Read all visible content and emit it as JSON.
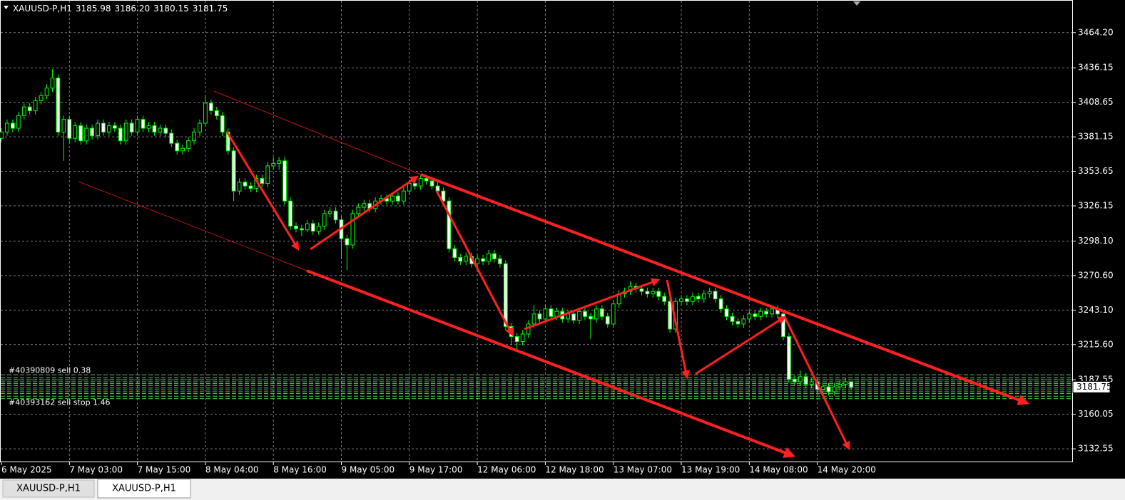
{
  "chart_data": {
    "type": "candlestick",
    "symbol": "XAUUSD-P,H1",
    "last_bar_labels": [
      "3185.98",
      "3186.20",
      "3180.15",
      "3181.75"
    ],
    "ylim": [
      3122.4,
      3490.2
    ],
    "yticks": [
      {
        "value": 3464.2,
        "label": "3464.20"
      },
      3436.15,
      3408.65,
      3381.15,
      3353.65,
      3326.15,
      {
        "value": 3298.1,
        "label": "3298.10"
      },
      {
        "value": 3270.6,
        "label": "3270.60"
      },
      {
        "value": 3243.1,
        "label": "3243.10"
      },
      {
        "value": 3215.6,
        "label": "3215.60"
      },
      3187.55,
      3160.05,
      3132.55
    ],
    "xlim": [
      0,
      189
    ],
    "xticks": [
      {
        "value": 0,
        "label": "6 May 2025"
      },
      {
        "value": 12,
        "label": "7 May 03:00"
      },
      {
        "value": 24,
        "label": "7 May 15:00"
      },
      {
        "value": 36,
        "label": "8 May 04:00"
      },
      {
        "value": 48,
        "label": "8 May 16:00"
      },
      {
        "value": 60,
        "label": "9 May 05:00"
      },
      {
        "value": 72,
        "label": "9 May 17:00"
      },
      {
        "value": 84,
        "label": "12 May 06:00"
      },
      {
        "value": 96,
        "label": "12 May 18:00"
      },
      {
        "value": 108,
        "label": "13 May 07:00"
      },
      {
        "value": 120,
        "label": "13 May 19:00"
      },
      {
        "value": 132,
        "label": "14 May 08:00"
      },
      {
        "value": 144,
        "label": "14 May 20:00"
      }
    ],
    "grid": true,
    "color": "#00ff00",
    "order_levels": [
      3191.5,
      3189,
      3187.5,
      3186,
      3184.5,
      3183,
      3181,
      3179.5,
      3178,
      3176.5,
      3174.5,
      3172.5
    ],
    "order_color": "#44dd44",
    "order_labels": [
      "#40390809 sell 0.38",
      "#40393162 sell stop 1.46"
    ],
    "ohlc": [
      [
        3380,
        3388,
        3377,
        3385
      ],
      [
        3385,
        3395,
        3382,
        3392
      ],
      [
        3392,
        3395,
        3385,
        3388
      ],
      [
        3388,
        3401,
        3385,
        3398
      ],
      [
        3398,
        3408,
        3395,
        3405
      ],
      [
        3405,
        3408,
        3399,
        3402
      ],
      [
        3402,
        3413,
        3399,
        3410
      ],
      [
        3410,
        3417,
        3407,
        3414
      ],
      [
        3414,
        3423,
        3411,
        3420
      ],
      [
        3420,
        3435,
        3417,
        3428
      ],
      [
        3428,
        3431,
        3382,
        3385
      ],
      [
        3385,
        3398,
        3362,
        3395
      ],
      [
        3395,
        3398,
        3377,
        3380
      ],
      [
        3380,
        3393,
        3377,
        3390
      ],
      [
        3390,
        3393,
        3375,
        3378
      ],
      [
        3378,
        3391,
        3375,
        3388
      ],
      [
        3388,
        3391,
        3379,
        3382
      ],
      [
        3382,
        3395,
        3379,
        3392
      ],
      [
        3392,
        3395,
        3382,
        3385
      ],
      [
        3385,
        3393,
        3382,
        3390
      ],
      [
        3390,
        3393,
        3385,
        3388
      ],
      [
        3388,
        3391,
        3375,
        3378
      ],
      [
        3378,
        3395,
        3375,
        3392
      ],
      [
        3392,
        3395,
        3382,
        3385
      ],
      [
        3385,
        3398,
        3382,
        3395
      ],
      [
        3395,
        3398,
        3385,
        3388
      ],
      [
        3388,
        3393,
        3385,
        3390
      ],
      [
        3390,
        3393,
        3382,
        3385
      ],
      [
        3385,
        3391,
        3382,
        3388
      ],
      [
        3388,
        3391,
        3381,
        3384
      ],
      [
        3384,
        3387,
        3373,
        3376
      ],
      [
        3376,
        3379,
        3367,
        3370
      ],
      [
        3370,
        3375,
        3367,
        3372
      ],
      [
        3372,
        3381,
        3369,
        3378
      ],
      [
        3378,
        3388,
        3375,
        3385
      ],
      [
        3385,
        3395,
        3382,
        3392
      ],
      [
        3392,
        3414,
        3389,
        3408
      ],
      [
        3408,
        3411,
        3399,
        3402
      ],
      [
        3402,
        3405,
        3395,
        3398
      ],
      [
        3398,
        3401,
        3382,
        3385
      ],
      [
        3385,
        3388,
        3367,
        3370
      ],
      [
        3370,
        3373,
        3330,
        3338
      ],
      [
        3338,
        3348,
        3335,
        3345
      ],
      [
        3345,
        3348,
        3339,
        3342
      ],
      [
        3342,
        3345,
        3337,
        3340
      ],
      [
        3340,
        3351,
        3337,
        3348
      ],
      [
        3348,
        3351,
        3341,
        3344
      ],
      [
        3344,
        3361,
        3341,
        3358
      ],
      [
        3358,
        3365,
        3355,
        3360
      ],
      [
        3360,
        3365,
        3355,
        3362
      ],
      [
        3362,
        3365,
        3327,
        3330
      ],
      [
        3330,
        3333,
        3307,
        3310
      ],
      [
        3310,
        3313,
        3305,
        3308
      ],
      [
        3308,
        3311,
        3302,
        3307
      ],
      [
        3307,
        3315,
        3305,
        3312
      ],
      [
        3312,
        3315,
        3303,
        3306
      ],
      [
        3306,
        3313,
        3303,
        3310
      ],
      [
        3310,
        3323,
        3307,
        3320
      ],
      [
        3320,
        3325,
        3317,
        3322
      ],
      [
        3322,
        3325,
        3312,
        3315
      ],
      [
        3315,
        3318,
        3285,
        3300
      ],
      [
        3300,
        3303,
        3275,
        3295
      ],
      [
        3295,
        3323,
        3292,
        3320
      ],
      [
        3320,
        3328,
        3317,
        3325
      ],
      [
        3325,
        3331,
        3322,
        3328
      ],
      [
        3328,
        3331,
        3321,
        3324
      ],
      [
        3324,
        3333,
        3321,
        3330
      ],
      [
        3330,
        3335,
        3327,
        3332
      ],
      [
        3332,
        3335,
        3327,
        3330
      ],
      [
        3330,
        3337,
        3327,
        3334
      ],
      [
        3334,
        3337,
        3327,
        3330
      ],
      [
        3330,
        3341,
        3327,
        3338
      ],
      [
        3338,
        3347,
        3335,
        3344
      ],
      [
        3344,
        3347,
        3339,
        3342
      ],
      [
        3342,
        3351,
        3339,
        3348
      ],
      [
        3348,
        3351,
        3343,
        3346
      ],
      [
        3346,
        3349,
        3339,
        3342
      ],
      [
        3342,
        3345,
        3335,
        3338
      ],
      [
        3338,
        3341,
        3327,
        3330
      ],
      [
        3330,
        3333,
        3289,
        3292
      ],
      [
        3292,
        3295,
        3282,
        3285
      ],
      [
        3285,
        3288,
        3279,
        3282
      ],
      [
        3282,
        3289,
        3279,
        3286
      ],
      [
        3286,
        3289,
        3277,
        3280
      ],
      [
        3280,
        3287,
        3277,
        3284
      ],
      [
        3284,
        3287,
        3279,
        3282
      ],
      [
        3282,
        3291,
        3279,
        3288
      ],
      [
        3288,
        3291,
        3281,
        3284
      ],
      [
        3284,
        3287,
        3277,
        3280
      ],
      [
        3280,
        3283,
        3227,
        3230
      ],
      [
        3230,
        3233,
        3215,
        3222
      ],
      [
        3222,
        3225,
        3212,
        3218
      ],
      [
        3218,
        3227,
        3215,
        3224
      ],
      [
        3224,
        3235,
        3221,
        3232
      ],
      [
        3232,
        3247,
        3229,
        3240
      ],
      [
        3240,
        3243,
        3233,
        3236
      ],
      [
        3236,
        3247,
        3233,
        3244
      ],
      [
        3244,
        3247,
        3235,
        3238
      ],
      [
        3238,
        3245,
        3235,
        3242
      ],
      [
        3242,
        3245,
        3233,
        3236
      ],
      [
        3236,
        3243,
        3233,
        3240
      ],
      [
        3240,
        3243,
        3232,
        3235
      ],
      [
        3235,
        3245,
        3232,
        3242
      ],
      [
        3242,
        3245,
        3235,
        3238
      ],
      [
        3238,
        3241,
        3220,
        3236
      ],
      [
        3236,
        3247,
        3233,
        3244
      ],
      [
        3244,
        3247,
        3235,
        3238
      ],
      [
        3238,
        3241,
        3229,
        3232
      ],
      [
        3232,
        3251,
        3229,
        3248
      ],
      [
        3248,
        3259,
        3245,
        3256
      ],
      [
        3256,
        3261,
        3253,
        3258
      ],
      [
        3258,
        3266,
        3255,
        3262
      ],
      [
        3262,
        3265,
        3257,
        3260
      ],
      [
        3260,
        3263,
        3255,
        3258
      ],
      [
        3258,
        3261,
        3253,
        3256
      ],
      [
        3256,
        3261,
        3253,
        3258
      ],
      [
        3258,
        3261,
        3251,
        3254
      ],
      [
        3254,
        3257,
        3247,
        3250
      ],
      [
        3250,
        3253,
        3225,
        3228
      ],
      [
        3228,
        3253,
        3225,
        3250
      ],
      [
        3250,
        3255,
        3247,
        3252
      ],
      [
        3252,
        3255,
        3247,
        3250
      ],
      [
        3250,
        3257,
        3247,
        3254
      ],
      [
        3254,
        3257,
        3249,
        3252
      ],
      [
        3252,
        3259,
        3249,
        3256
      ],
      [
        3256,
        3261,
        3253,
        3258
      ],
      [
        3258,
        3261,
        3249,
        3252
      ],
      [
        3252,
        3255,
        3241,
        3244
      ],
      [
        3244,
        3247,
        3235,
        3238
      ],
      [
        3238,
        3241,
        3231,
        3234
      ],
      [
        3234,
        3237,
        3229,
        3232
      ],
      [
        3232,
        3239,
        3229,
        3236
      ],
      [
        3236,
        3243,
        3233,
        3240
      ],
      [
        3240,
        3243,
        3235,
        3238
      ],
      [
        3238,
        3245,
        3235,
        3242
      ],
      [
        3242,
        3245,
        3237,
        3240
      ],
      [
        3240,
        3247,
        3237,
        3244
      ],
      [
        3244,
        3247,
        3237,
        3240
      ],
      [
        3240,
        3243,
        3219,
        3222
      ],
      [
        3222,
        3225,
        3185,
        3188
      ],
      [
        3188,
        3191,
        3183,
        3186
      ],
      [
        3186,
        3195,
        3183,
        3190
      ],
      [
        3190,
        3193,
        3181,
        3184
      ],
      [
        3184,
        3189,
        3181,
        3186
      ],
      [
        3186,
        3189,
        3177,
        3180
      ],
      [
        3180,
        3185,
        3177,
        3182
      ],
      [
        3182,
        3185,
        3175,
        3178
      ],
      [
        3178,
        3185,
        3175,
        3182
      ],
      [
        3182,
        3187,
        3179,
        3184
      ],
      [
        3184,
        3189,
        3181,
        3185.98
      ],
      [
        3185.98,
        3186.2,
        3180.15,
        3181.75
      ]
    ]
  },
  "tabs": [
    "XAUUSD-P,H1",
    "XAUUSD-P,H1"
  ]
}
